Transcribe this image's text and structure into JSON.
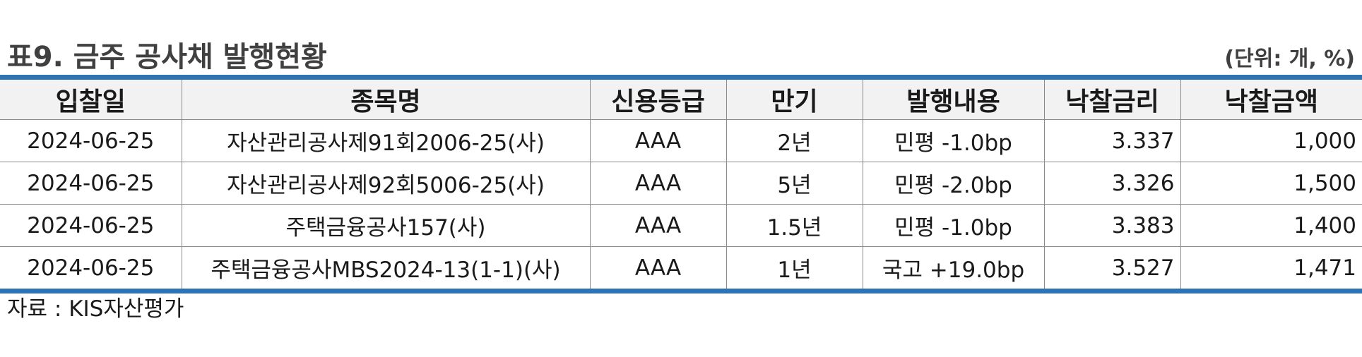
{
  "title": "표9. 금주 공사채 발행현황",
  "unit": "(단위: 개, %)",
  "table": {
    "headers": [
      "입찰일",
      "종목명",
      "신용등급",
      "만기",
      "발행내용",
      "낙찰금리",
      "낙찰금액"
    ],
    "rows": [
      [
        "2024-06-25",
        "자산관리공사제91회2006-25(사)",
        "AAA",
        "2년",
        "민평 -1.0bp",
        "3.337",
        "1,000"
      ],
      [
        "2024-06-25",
        "자산관리공사제92회5006-25(사)",
        "AAA",
        "5년",
        "민평 -2.0bp",
        "3.326",
        "1,500"
      ],
      [
        "2024-06-25",
        "주택금융공사157(사)",
        "AAA",
        "1.5년",
        "민평 -1.0bp",
        "3.383",
        "1,400"
      ],
      [
        "2024-06-25",
        "주택금융공사MBS2024-13(1-1)(사)",
        "AAA",
        "1년",
        "국고 +19.0bp",
        "3.527",
        "1,471"
      ]
    ]
  },
  "source": "자료 : KIS자산평가",
  "colors": {
    "rule": "#2e74b5",
    "header_bg": "#f2f2f2",
    "title": "#404040"
  }
}
